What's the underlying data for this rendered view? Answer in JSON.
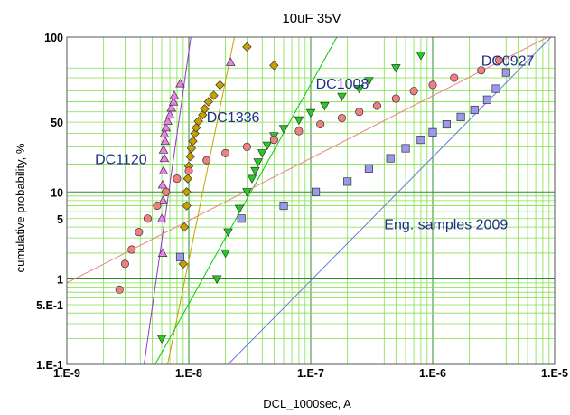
{
  "chart_data": {
    "type": "scatter",
    "title": "10uF 35V",
    "xlabel": "DCL_1000sec, A",
    "ylabel": "cumulative probability, %",
    "xscale": "log",
    "yscale": "weibull-probability",
    "xlim": [
      1e-09,
      1e-05
    ],
    "ylim": [
      0.1,
      100
    ],
    "x_ticks": [
      {
        "value": 1e-09,
        "label": "1.E-9"
      },
      {
        "value": 1e-08,
        "label": "1.E-8"
      },
      {
        "value": 1e-07,
        "label": "1.E-7"
      },
      {
        "value": 1e-06,
        "label": "1.E-6"
      },
      {
        "value": 1e-05,
        "label": "1.E-5"
      }
    ],
    "y_ticks": [
      {
        "value": 100,
        "label": "100"
      },
      {
        "value": 50,
        "label": "50"
      },
      {
        "value": 10,
        "label": "10"
      },
      {
        "value": 5,
        "label": "5"
      },
      {
        "value": 1,
        "label": "1"
      },
      {
        "value": 0.5,
        "label": "5.E-1"
      },
      {
        "value": 0.1,
        "label": "1.E-1"
      }
    ],
    "grid": true,
    "annotations": [
      {
        "text": "DC0927",
        "x": 2.5e-06,
        "y": 96
      },
      {
        "text": "DC1008",
        "x": 1.1e-07,
        "y": 82
      },
      {
        "text": "DC1336",
        "x": 1.4e-08,
        "y": 50
      },
      {
        "text": "DC1120",
        "x": 1.7e-09,
        "y": 20
      },
      {
        "text": "Eng. samples 2009",
        "x": 4e-07,
        "y": 3.8
      }
    ],
    "series": [
      {
        "color": "#ee80ee",
        "marker": "triangle",
        "fit_color": "#9932cc",
        "fit": [
          [
            4.3e-09,
            0.1
          ],
          [
            1.05e-08,
            100
          ]
        ],
        "points": [
          [
            6.1e-09,
            2
          ],
          [
            6e-09,
            5
          ],
          [
            6.15e-09,
            8
          ],
          [
            6.1e-09,
            12
          ],
          [
            6.2e-09,
            17
          ],
          [
            6.3e-09,
            23
          ],
          [
            6.2e-09,
            28
          ],
          [
            6.4e-09,
            34
          ],
          [
            6.3e-09,
            40
          ],
          [
            6.5e-09,
            45
          ],
          [
            6.7e-09,
            51
          ],
          [
            7e-09,
            57
          ],
          [
            7.2e-09,
            64
          ],
          [
            7.5e-09,
            70
          ],
          [
            7.6e-09,
            76
          ],
          [
            8.5e-09,
            86
          ],
          [
            2.2e-08,
            97
          ]
        ]
      },
      {
        "color": "#c8a000",
        "marker": "diamond",
        "fit_color": "#c8a000",
        "fit": [
          [
            6.7e-09,
            0.1
          ],
          [
            2.4e-08,
            100
          ]
        ],
        "points": [
          [
            9e-09,
            1.5
          ],
          [
            9.2e-09,
            4
          ],
          [
            9.6e-09,
            7
          ],
          [
            9.6e-09,
            10
          ],
          [
            9.8e-09,
            14
          ],
          [
            1e-08,
            19
          ],
          [
            1.03e-08,
            24
          ],
          [
            1.05e-08,
            29
          ],
          [
            1.08e-08,
            34
          ],
          [
            1.12e-08,
            40
          ],
          [
            1.15e-08,
            45
          ],
          [
            1.2e-08,
            51
          ],
          [
            1.3e-08,
            57
          ],
          [
            1.35e-08,
            63
          ],
          [
            1.45e-08,
            70
          ],
          [
            1.6e-08,
            76
          ],
          [
            1.8e-08,
            85
          ],
          [
            5e-08,
            96
          ],
          [
            3e-08,
            99.5
          ]
        ]
      },
      {
        "color": "#22cc22",
        "marker": "triangle-down",
        "fit_color": "#00cc00",
        "fit": [
          [
            5.3e-09,
            0.1
          ],
          [
            1.7e-07,
            100
          ]
        ],
        "points": [
          [
            6e-09,
            0.2
          ],
          [
            1.7e-08,
            1.0
          ],
          [
            2e-08,
            2.0
          ],
          [
            2.1e-08,
            3.5
          ],
          [
            2.6e-08,
            6.5
          ],
          [
            3e-08,
            10
          ],
          [
            3.3e-08,
            14
          ],
          [
            3.5e-08,
            17
          ],
          [
            3.7e-08,
            21
          ],
          [
            4e-08,
            26
          ],
          [
            4.4e-08,
            31
          ],
          [
            5e-08,
            38
          ],
          [
            6e-08,
            44
          ],
          [
            8e-08,
            52
          ],
          [
            1e-07,
            59
          ],
          [
            1.3e-07,
            66
          ],
          [
            1.8e-07,
            75
          ],
          [
            2.5e-07,
            82
          ],
          [
            3e-07,
            88
          ],
          [
            5e-07,
            95
          ],
          [
            8e-07,
            98.5
          ]
        ]
      },
      {
        "color": "#f08080",
        "marker": "circle",
        "fit_color": "#f08080",
        "fit": [
          [
            1e-09,
            0.9
          ],
          [
            1e-05,
            100
          ]
        ],
        "points": [
          [
            2.7e-09,
            0.75
          ],
          [
            3e-09,
            1.5
          ],
          [
            3.4e-09,
            2.2
          ],
          [
            3.9e-09,
            3.5
          ],
          [
            4.6e-09,
            5
          ],
          [
            5.5e-09,
            7
          ],
          [
            6.5e-09,
            10
          ],
          [
            8e-09,
            14
          ],
          [
            1e-08,
            17
          ],
          [
            1.4e-08,
            22
          ],
          [
            2e-08,
            26
          ],
          [
            3e-08,
            30
          ],
          [
            5e-08,
            35
          ],
          [
            8e-08,
            42
          ],
          [
            1.2e-07,
            48
          ],
          [
            1.8e-07,
            54
          ],
          [
            2.5e-07,
            60
          ],
          [
            3.5e-07,
            66
          ],
          [
            5e-07,
            73
          ],
          [
            7e-07,
            80
          ],
          [
            1e-06,
            85
          ],
          [
            1.5e-06,
            90
          ],
          [
            2.5e-06,
            94
          ],
          [
            3.5e-06,
            97.5
          ]
        ]
      },
      {
        "color": "#9999ee",
        "marker": "square",
        "fit_color": "#6a7ad8",
        "fit": [
          [
            2.1e-08,
            0.1
          ],
          [
            1e-05,
            100
          ]
        ],
        "points": [
          [
            8.5e-09,
            1.8
          ],
          [
            2.7e-08,
            5
          ],
          [
            6e-08,
            7
          ],
          [
            1.1e-07,
            10
          ],
          [
            2e-07,
            13
          ],
          [
            3e-07,
            18
          ],
          [
            4.5e-07,
            23
          ],
          [
            6e-07,
            29
          ],
          [
            8e-07,
            35
          ],
          [
            1e-06,
            41
          ],
          [
            1.3e-06,
            48
          ],
          [
            1.7e-06,
            55
          ],
          [
            2.2e-06,
            62
          ],
          [
            2.8e-06,
            72
          ],
          [
            3.3e-06,
            82
          ],
          [
            4e-06,
            93
          ]
        ]
      }
    ]
  }
}
